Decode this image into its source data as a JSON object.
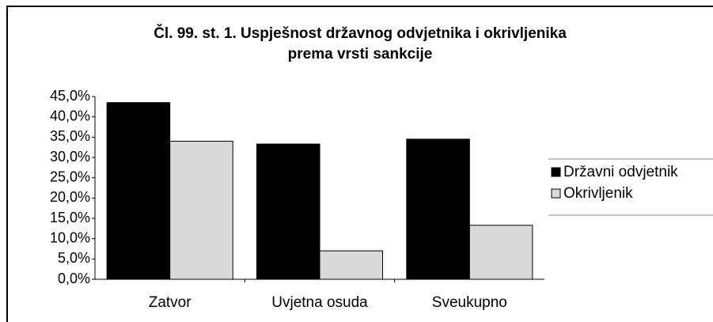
{
  "chart_data": {
    "type": "bar",
    "title": [
      "Čl. 99. st. 1. Uspješnost državnog odvjetnika i okrivljenika",
      "prema vrsti sankcije"
    ],
    "categories": [
      "Zatvor",
      "Uvjetna osuda",
      "Sveukupno"
    ],
    "series": [
      {
        "name": "Državni odvjetnik",
        "color": "#000000",
        "values": [
          43.5,
          33.3,
          34.5
        ]
      },
      {
        "name": "Okrivljenik",
        "color": "#d9d9d9",
        "values": [
          34.0,
          7.0,
          13.3
        ]
      }
    ],
    "ylim": [
      0,
      45
    ],
    "yticks": [
      {
        "value": 0,
        "label": "0,0%"
      },
      {
        "value": 5,
        "label": "5,0%"
      },
      {
        "value": 10,
        "label": "10,0%"
      },
      {
        "value": 15,
        "label": "15,0%"
      },
      {
        "value": 20,
        "label": "20,0%"
      },
      {
        "value": 25,
        "label": "25,0%"
      },
      {
        "value": 30,
        "label": "30,0%"
      },
      {
        "value": 35,
        "label": "35,0%"
      },
      {
        "value": 40,
        "label": "40,0%"
      },
      {
        "value": 45,
        "label": "45,0%"
      }
    ],
    "grid": false,
    "legend": "right"
  }
}
